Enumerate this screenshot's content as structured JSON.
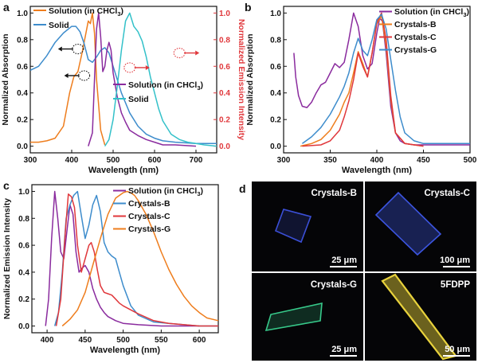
{
  "panels": {
    "a": {
      "letter": "a"
    },
    "b": {
      "letter": "b"
    },
    "c": {
      "letter": "c"
    },
    "d": {
      "letter": "d"
    }
  },
  "colors": {
    "orange": "#ee7d1d",
    "teal": "#33c1c9",
    "blue": "#3d8ccc",
    "purple": "#8a2b9e",
    "red_axis": "#e0373b",
    "black": "#111111"
  },
  "chart_data": [
    {
      "id": "a",
      "type": "line",
      "title": "",
      "xlabel": "Wavelength (nm)",
      "ylabel_left": "Normalized Absorption",
      "ylabel_right": "Normalized Emission Intensity",
      "xlim": [
        300,
        750
      ],
      "ylim": [
        -0.05,
        1.05
      ],
      "xticks": [
        "300",
        "400",
        "500",
        "600",
        "700"
      ],
      "yticks_left": [
        "0.0",
        "0.2",
        "0.4",
        "0.6",
        "0.8",
        "1.0"
      ],
      "yticks_right": [
        "0.0",
        "0.2",
        "0.4",
        "0.6",
        "0.8",
        "1.0"
      ],
      "legend": {
        "absorption": {
          "position": "top-left",
          "entries": [
            "Solution (in CHCl",
            "Solid"
          ]
        },
        "emission": {
          "position": "center-right",
          "entries": [
            "Solution (in CHCl",
            "Solid"
          ]
        },
        "subscript": "3",
        "closing": ")"
      },
      "series": [
        {
          "name": "Solution (in CHCl3)",
          "kind": "absorption",
          "color": "orange",
          "x": [
            300,
            320,
            340,
            360,
            380,
            395,
            405,
            415,
            425,
            435,
            440,
            445,
            450,
            455,
            460,
            470,
            480
          ],
          "y": [
            0.03,
            0.03,
            0.04,
            0.06,
            0.15,
            0.4,
            0.52,
            0.56,
            0.7,
            0.86,
            0.94,
            0.92,
            1.0,
            0.85,
            0.5,
            0.12,
            0.01
          ]
        },
        {
          "name": "Solid",
          "kind": "absorption",
          "color": "blue",
          "x": [
            300,
            320,
            340,
            360,
            380,
            400,
            410,
            420,
            430,
            440,
            450,
            460,
            470,
            480,
            490,
            500,
            520,
            540,
            560,
            580,
            600,
            620,
            650,
            700,
            750
          ],
          "y": [
            0.57,
            0.6,
            0.68,
            0.78,
            0.85,
            0.9,
            0.9,
            0.86,
            0.77,
            0.65,
            0.63,
            0.67,
            0.72,
            0.74,
            0.7,
            0.6,
            0.4,
            0.25,
            0.15,
            0.09,
            0.06,
            0.04,
            0.03,
            0.02,
            0.02
          ]
        },
        {
          "name": "Solution (in CHCl3)",
          "kind": "emission",
          "color": "purple",
          "x": [
            440,
            450,
            455,
            460,
            465,
            470,
            475,
            480,
            485,
            490,
            495,
            500,
            510,
            520,
            530,
            540,
            560,
            580,
            600,
            620,
            650,
            700
          ],
          "y": [
            0.0,
            0.1,
            0.5,
            0.88,
            1.0,
            0.82,
            0.56,
            0.6,
            0.72,
            0.78,
            0.72,
            0.55,
            0.37,
            0.25,
            0.18,
            0.12,
            0.08,
            0.05,
            0.03,
            0.01,
            0.01,
            0.0
          ]
        },
        {
          "name": "Solid",
          "kind": "emission",
          "color": "teal",
          "x": [
            480,
            490,
            500,
            510,
            520,
            530,
            540,
            550,
            560,
            570,
            580,
            590,
            600,
            610,
            620,
            640,
            660,
            680,
            700,
            720,
            750
          ],
          "y": [
            0.0,
            0.05,
            0.2,
            0.45,
            0.72,
            0.94,
            1.0,
            0.9,
            0.86,
            0.79,
            0.67,
            0.52,
            0.4,
            0.28,
            0.19,
            0.09,
            0.05,
            0.03,
            0.02,
            0.01,
            0.0
          ]
        }
      ],
      "annotations": [
        {
          "type": "dotted-circle-arrow",
          "points_to": "left-axis",
          "at_x": 415,
          "at_y": 0.73
        },
        {
          "type": "dotted-circle-arrow",
          "points_to": "left-axis",
          "at_x": 430,
          "at_y": 0.53
        },
        {
          "type": "dotted-circle-arrow",
          "points_to": "right-axis",
          "at_x": 540,
          "at_y": 0.59
        },
        {
          "type": "dotted-circle-arrow",
          "points_to": "right-axis",
          "at_x": 660,
          "at_y": 0.7
        }
      ]
    },
    {
      "id": "b",
      "type": "line",
      "title": "",
      "xlabel": "Wavelength (nm)",
      "ylabel": "Normalized Absorption",
      "xlim": [
        300,
        500
      ],
      "ylim": [
        -0.05,
        1.05
      ],
      "xticks": [
        "300",
        "350",
        "400",
        "450",
        "500"
      ],
      "yticks": [
        "0.0",
        "0.2",
        "0.4",
        "0.6",
        "0.8",
        "1.0"
      ],
      "legend": {
        "position": "top-right",
        "entries": [
          "Solution (in CHCl",
          "Crystals-B",
          "Crystals-C",
          "Crystals-G"
        ],
        "subscript": "3",
        "closing": ")"
      },
      "series": [
        {
          "name": "Solution (in CHCl3)",
          "color": "purple",
          "x": [
            311,
            313,
            316,
            320,
            325,
            330,
            335,
            340,
            345,
            350,
            355,
            360,
            365,
            370,
            375,
            380,
            385,
            390,
            395,
            400,
            403,
            406,
            410,
            415,
            420,
            425,
            430,
            440,
            450,
            460,
            480,
            500
          ],
          "y": [
            0.7,
            0.52,
            0.38,
            0.3,
            0.29,
            0.33,
            0.4,
            0.46,
            0.48,
            0.55,
            0.62,
            0.59,
            0.63,
            0.8,
            1.0,
            0.9,
            0.68,
            0.58,
            0.62,
            0.85,
            0.96,
            0.94,
            0.7,
            0.3,
            0.1,
            0.04,
            0.02,
            0.01,
            0.01,
            0.01,
            0.01,
            0.01
          ]
        },
        {
          "name": "Crystals-B",
          "color": "orange",
          "x": [
            318,
            330,
            340,
            350,
            360,
            365,
            370,
            375,
            380,
            385,
            390,
            395,
            400,
            405,
            410,
            415,
            420,
            430,
            440,
            450
          ],
          "y": [
            0.0,
            0.02,
            0.05,
            0.12,
            0.24,
            0.33,
            0.4,
            0.55,
            0.71,
            0.62,
            0.52,
            0.7,
            0.92,
            0.98,
            0.75,
            0.35,
            0.1,
            0.02,
            0.01,
            0.0
          ]
        },
        {
          "name": "Crystals-C",
          "color": "red",
          "x": [
            320,
            340,
            350,
            360,
            365,
            370,
            375,
            380,
            385,
            390,
            395,
            400,
            405,
            410,
            415,
            420,
            430,
            450
          ],
          "y": [
            0.0,
            0.01,
            0.04,
            0.12,
            0.22,
            0.34,
            0.5,
            0.7,
            0.6,
            0.52,
            0.7,
            0.93,
            1.0,
            0.8,
            0.38,
            0.1,
            0.02,
            0.0
          ]
        },
        {
          "name": "Crystals-G",
          "color": "blue",
          "x": [
            320,
            330,
            340,
            350,
            360,
            365,
            370,
            375,
            380,
            385,
            390,
            395,
            400,
            405,
            410,
            415,
            420,
            425,
            430,
            440,
            450,
            460,
            480,
            500
          ],
          "y": [
            0.02,
            0.07,
            0.14,
            0.24,
            0.37,
            0.45,
            0.55,
            0.7,
            0.81,
            0.72,
            0.68,
            0.8,
            0.95,
            0.99,
            0.88,
            0.65,
            0.42,
            0.22,
            0.1,
            0.04,
            0.02,
            0.02,
            0.02,
            0.02
          ]
        }
      ]
    },
    {
      "id": "c",
      "type": "line",
      "title": "",
      "xlabel": "Wavelength (nm)",
      "ylabel": "Normalized Emission Intensity",
      "xlim": [
        380,
        625
      ],
      "ylim": [
        -0.05,
        1.05
      ],
      "xticks": [
        "400",
        "450",
        "500",
        "550",
        "600"
      ],
      "yticks": [
        "0.0",
        "0.2",
        "0.4",
        "0.6",
        "0.8",
        "1.0"
      ],
      "legend": {
        "position": "top-right",
        "entries": [
          "Solution (in CHCl",
          "Crystals-B",
          "Crystals-C",
          "Crystals-G"
        ],
        "subscript": "3",
        "closing": ")"
      },
      "series": [
        {
          "name": "Solution (in CHCl3)",
          "color": "purple",
          "x": [
            398,
            402,
            406,
            410,
            414,
            418,
            422,
            426,
            430,
            434,
            438,
            442,
            446,
            450,
            455,
            460,
            465,
            470,
            475,
            480,
            490,
            500,
            520,
            550,
            580,
            600
          ],
          "y": [
            0.0,
            0.2,
            0.65,
            1.0,
            0.8,
            0.55,
            0.5,
            0.7,
            0.9,
            0.83,
            0.55,
            0.4,
            0.43,
            0.45,
            0.4,
            0.28,
            0.2,
            0.14,
            0.1,
            0.07,
            0.04,
            0.02,
            0.01,
            0.0,
            0.0,
            0.0
          ]
        },
        {
          "name": "Crystals-B",
          "color": "blue",
          "x": [
            410,
            415,
            420,
            425,
            430,
            435,
            440,
            445,
            450,
            455,
            460,
            465,
            470,
            475,
            480,
            485,
            490,
            495,
            500,
            510,
            520,
            540,
            560,
            580,
            600,
            625
          ],
          "y": [
            0.0,
            0.1,
            0.4,
            0.8,
            0.9,
            0.97,
            1.0,
            0.82,
            0.65,
            0.75,
            0.9,
            0.97,
            0.85,
            0.62,
            0.55,
            0.52,
            0.5,
            0.4,
            0.3,
            0.15,
            0.08,
            0.03,
            0.02,
            0.01,
            0.0,
            0.0
          ]
        },
        {
          "name": "Crystals-C",
          "color": "red",
          "x": [
            412,
            418,
            424,
            428,
            432,
            436,
            440,
            445,
            450,
            455,
            458,
            462,
            466,
            470,
            475,
            480,
            485,
            490,
            495,
            500,
            510,
            520,
            540,
            560,
            580,
            600,
            625
          ],
          "y": [
            0.0,
            0.2,
            0.7,
            0.98,
            0.96,
            0.88,
            0.6,
            0.4,
            0.5,
            0.6,
            0.62,
            0.55,
            0.42,
            0.3,
            0.25,
            0.24,
            0.23,
            0.2,
            0.17,
            0.15,
            0.12,
            0.09,
            0.04,
            0.02,
            0.01,
            0.0,
            0.0
          ]
        },
        {
          "name": "Crystals-G",
          "color": "orange",
          "x": [
            420,
            430,
            440,
            450,
            460,
            470,
            480,
            490,
            500,
            505,
            510,
            515,
            520,
            530,
            540,
            550,
            560,
            570,
            580,
            590,
            600,
            610,
            625
          ],
          "y": [
            0.0,
            0.05,
            0.12,
            0.25,
            0.45,
            0.65,
            0.83,
            0.95,
            0.99,
            1.0,
            0.99,
            0.97,
            0.93,
            0.83,
            0.7,
            0.55,
            0.42,
            0.31,
            0.22,
            0.15,
            0.1,
            0.06,
            0.04
          ]
        }
      ]
    }
  ],
  "micrographs": [
    {
      "label": "Crystals-B",
      "scale": "25 μm",
      "glow": "#3b4fd6"
    },
    {
      "label": "Crystals-C",
      "scale": "100 μm",
      "glow": "#3c55e0"
    },
    {
      "label": "Crystals-G",
      "scale": "25 μm",
      "glow": "#37c98a"
    },
    {
      "label": "5FDPP",
      "scale": "50 μm",
      "glow": "#e8d23c"
    }
  ]
}
